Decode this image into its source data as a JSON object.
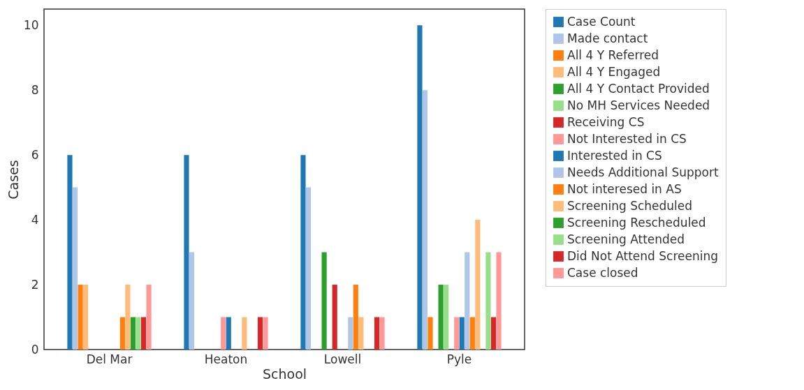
{
  "chart_data": {
    "type": "bar",
    "xlabel": "School",
    "ylabel": "Cases",
    "categories": [
      "Del Mar",
      "Heaton",
      "Lowell",
      "Pyle"
    ],
    "series": [
      {
        "name": "Case Count",
        "color": "#1f77b4",
        "values": [
          6,
          6,
          6,
          10
        ]
      },
      {
        "name": "Made contact",
        "color": "#aec7e8",
        "values": [
          5,
          3,
          5,
          8
        ]
      },
      {
        "name": "All 4 Y Referred",
        "color": "#ff7f0e",
        "values": [
          2,
          0,
          0,
          1
        ]
      },
      {
        "name": "All 4 Y Engaged",
        "color": "#ffbb78",
        "values": [
          2,
          0,
          0,
          0
        ]
      },
      {
        "name": "All 4 Y Contact Provided",
        "color": "#2ca02c",
        "values": [
          0,
          0,
          3,
          2
        ]
      },
      {
        "name": "No MH Services Needed",
        "color": "#98df8a",
        "values": [
          0,
          0,
          0,
          2
        ]
      },
      {
        "name": "Receiving CS",
        "color": "#d62728",
        "values": [
          0,
          0,
          2,
          0
        ]
      },
      {
        "name": "Not Interested in CS",
        "color": "#ff9896",
        "values": [
          0,
          1,
          0,
          1
        ]
      },
      {
        "name": "Interested in CS",
        "color": "#1f77b5",
        "values": [
          0,
          1,
          0,
          1
        ]
      },
      {
        "name": "Needs Additional Support",
        "color": "#aec7e9",
        "values": [
          0,
          0,
          1,
          3
        ]
      },
      {
        "name": "Not interesed in AS",
        "color": "#ff7f0f",
        "values": [
          1,
          0,
          2,
          1
        ]
      },
      {
        "name": "Screening Scheduled",
        "color": "#ffbb79",
        "values": [
          2,
          1,
          1,
          4
        ]
      },
      {
        "name": "Screening Rescheduled",
        "color": "#2ca02d",
        "values": [
          1,
          0,
          0,
          0
        ]
      },
      {
        "name": "Screening Attended",
        "color": "#98df8b",
        "values": [
          1,
          0,
          0,
          3
        ]
      },
      {
        "name": "Did Not Attend Screening",
        "color": "#d62729",
        "values": [
          1,
          1,
          1,
          1
        ]
      },
      {
        "name": "Case closed",
        "color": "#ff9897",
        "values": [
          2,
          1,
          1,
          3
        ]
      }
    ],
    "ylim": [
      0,
      10.5
    ],
    "yticks": [
      0,
      2,
      4,
      6,
      8,
      10
    ],
    "grid": false,
    "legend": "right"
  }
}
